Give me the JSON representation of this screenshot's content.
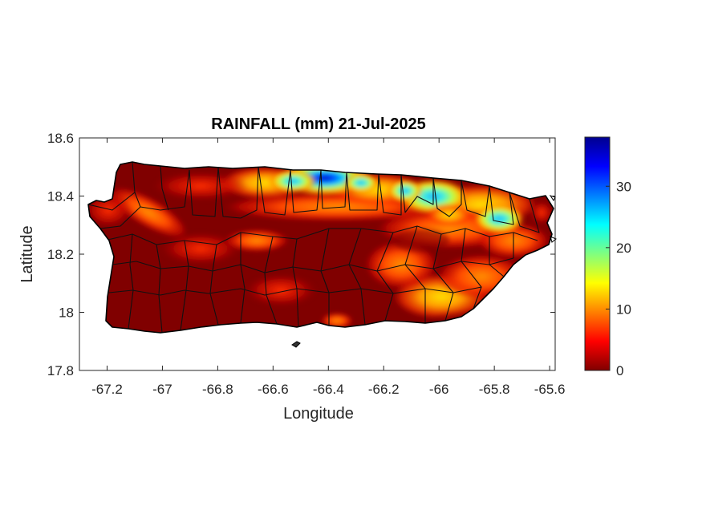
{
  "title": "RAINFALL (mm) 21-Jul-2025",
  "axes": {
    "xlabel": "Longitude",
    "ylabel": "Latitude",
    "xlim": [
      -67.3,
      -65.58
    ],
    "ylim": [
      17.8,
      18.6
    ],
    "xticks": [
      -67.2,
      -67,
      -66.8,
      -66.6,
      -66.4,
      -66.2,
      -66,
      -65.8,
      -65.6
    ],
    "xtick_labels": [
      "-67.2",
      "-67",
      "-66.8",
      "-66.6",
      "-66.4",
      "-66.2",
      "-66",
      "-65.8",
      "-65.6"
    ],
    "yticks": [
      18.6,
      18.4,
      18.2,
      18.0,
      17.8
    ],
    "ytick_labels": [
      "18.6",
      "18.4",
      "18.2",
      "18",
      "17.8"
    ]
  },
  "colorbar": {
    "range": [
      0,
      38
    ],
    "ticks": [
      0,
      10,
      20,
      30
    ],
    "tick_labels": [
      "0",
      "10",
      "20",
      "30"
    ],
    "colormap": [
      "#00008f",
      "#0000ff",
      "#00ffff",
      "#ffff00",
      "#ff7f00",
      "#ff0000",
      "#800000"
    ]
  },
  "chart_data": {
    "type": "heatmap",
    "variable": "rainfall_mm",
    "date": "21-Jul-2025",
    "hotspots": [
      {
        "lon": -66.39,
        "lat": 18.47,
        "value": 38
      },
      {
        "lon": -66.52,
        "lat": 18.45,
        "value": 25
      },
      {
        "lon": -66.3,
        "lat": 18.46,
        "value": 22
      },
      {
        "lon": -66.02,
        "lat": 18.39,
        "value": 30
      },
      {
        "lon": -66.1,
        "lat": 18.41,
        "value": 24
      },
      {
        "lon": -65.82,
        "lat": 18.33,
        "value": 26
      },
      {
        "lon": -65.9,
        "lat": 18.36,
        "value": 18
      },
      {
        "lon": -66.2,
        "lat": 18.43,
        "value": 12
      },
      {
        "lon": -66.65,
        "lat": 18.47,
        "value": 8
      },
      {
        "lon": -65.98,
        "lat": 18.03,
        "value": 10
      },
      {
        "lon": -65.75,
        "lat": 18.16,
        "value": 7
      },
      {
        "lon": -67.12,
        "lat": 18.32,
        "value": 6
      },
      {
        "lon": -66.6,
        "lat": 18.08,
        "value": 6
      },
      {
        "lon": -66.2,
        "lat": 18.15,
        "value": 7
      }
    ]
  }
}
